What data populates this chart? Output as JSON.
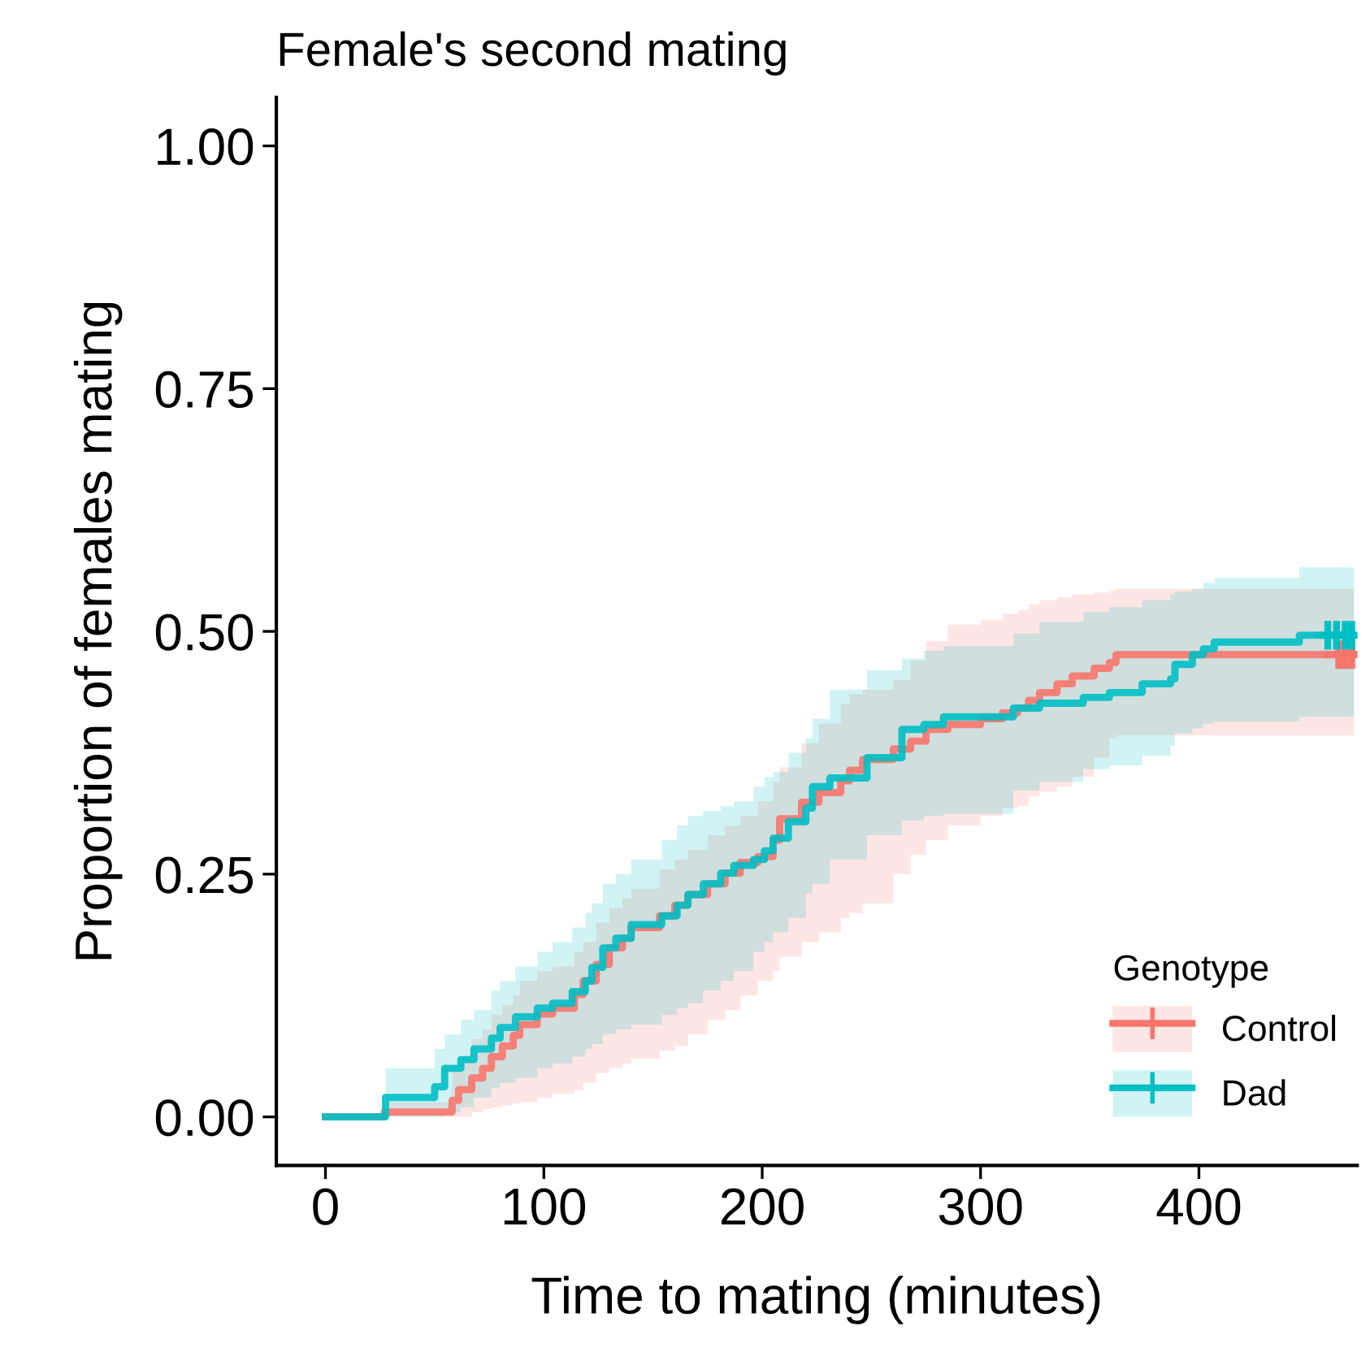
{
  "chart_data": {
    "type": "step",
    "title": "Female's second mating",
    "xlabel": "Time to mating (minutes)",
    "ylabel": "Proportion of females mating",
    "legend_title": "Genotype",
    "legend": "bottom right",
    "grid": false,
    "line_style": "solid",
    "xlim": [
      -22.5,
      472.5
    ],
    "xticks": [
      0,
      100,
      200,
      300,
      400
    ],
    "ylim": [
      -0.05,
      1.05
    ],
    "yticks": [
      {
        "value": 0,
        "label": "0.00"
      },
      {
        "value": 0.25,
        "label": "0.25"
      },
      {
        "value": 0.5,
        "label": "0.50"
      },
      {
        "value": 0.75,
        "label": "0.75"
      },
      {
        "value": 1,
        "label": "1.00"
      }
    ],
    "series": [
      {
        "name": "Control",
        "color": "#f8766d",
        "x": [
          0,
          27,
          58,
          61,
          67,
          72,
          76,
          81,
          86,
          89,
          97,
          104,
          114,
          118,
          124,
          130,
          136,
          140,
          153,
          160,
          166,
          175,
          183,
          190,
          198,
          205,
          208,
          218,
          226,
          236,
          240,
          246,
          260,
          268,
          275,
          285,
          300,
          310,
          317,
          322,
          327,
          335,
          342,
          352,
          359,
          362,
          471
        ],
        "values": [
          0,
          0.005,
          0.017,
          0.028,
          0.04,
          0.05,
          0.062,
          0.073,
          0.084,
          0.095,
          0.106,
          0.112,
          0.126,
          0.14,
          0.157,
          0.174,
          0.184,
          0.195,
          0.207,
          0.218,
          0.229,
          0.24,
          0.251,
          0.262,
          0.268,
          0.285,
          0.307,
          0.324,
          0.334,
          0.346,
          0.357,
          0.368,
          0.379,
          0.387,
          0.399,
          0.404,
          0.41,
          0.416,
          0.421,
          0.429,
          0.437,
          0.446,
          0.454,
          0.462,
          0.468,
          0.476,
          0.476
        ],
        "lower": [
          0,
          0,
          0,
          0,
          0.005,
          0.008,
          0.01,
          0.012,
          0.014,
          0.015,
          0.02,
          0.024,
          0.028,
          0.035,
          0.045,
          0.05,
          0.055,
          0.06,
          0.068,
          0.073,
          0.085,
          0.1,
          0.11,
          0.125,
          0.14,
          0.15,
          0.165,
          0.18,
          0.19,
          0.205,
          0.21,
          0.22,
          0.25,
          0.27,
          0.285,
          0.3,
          0.31,
          0.318,
          0.32,
          0.33,
          0.335,
          0.34,
          0.35,
          0.37,
          0.39,
          0.393,
          0.4
        ],
        "upper": [
          0,
          0.015,
          0.05,
          0.06,
          0.08,
          0.09,
          0.105,
          0.115,
          0.125,
          0.14,
          0.15,
          0.155,
          0.17,
          0.18,
          0.2,
          0.215,
          0.225,
          0.235,
          0.255,
          0.265,
          0.275,
          0.29,
          0.3,
          0.31,
          0.325,
          0.345,
          0.36,
          0.385,
          0.405,
          0.425,
          0.435,
          0.44,
          0.45,
          0.47,
          0.49,
          0.507,
          0.512,
          0.518,
          0.522,
          0.528,
          0.532,
          0.535,
          0.538,
          0.54,
          0.542,
          0.544,
          0.546
        ]
      },
      {
        "name": "Dad",
        "color": "#00bfc4",
        "x": [
          0,
          27.5,
          50,
          54.6,
          62,
          68,
          76,
          80,
          87,
          97,
          104,
          113,
          119,
          122,
          127,
          133,
          140,
          154,
          161,
          166,
          173,
          181,
          187,
          196,
          201,
          205,
          212,
          220,
          223,
          231,
          248,
          264,
          274,
          283,
          315,
          327,
          347,
          359,
          374,
          387,
          389,
          397,
          402,
          407,
          446,
          471
        ],
        "values": [
          0,
          0.02,
          0.031,
          0.05,
          0.059,
          0.07,
          0.081,
          0.092,
          0.103,
          0.112,
          0.117,
          0.129,
          0.14,
          0.154,
          0.174,
          0.184,
          0.198,
          0.207,
          0.218,
          0.229,
          0.24,
          0.251,
          0.259,
          0.265,
          0.274,
          0.287,
          0.304,
          0.318,
          0.34,
          0.349,
          0.37,
          0.399,
          0.404,
          0.412,
          0.421,
          0.426,
          0.432,
          0.437,
          0.446,
          0.451,
          0.466,
          0.476,
          0.482,
          0.489,
          0.496,
          0.496
        ],
        "lower": [
          0,
          0,
          0,
          0.005,
          0.01,
          0.02,
          0.03,
          0.035,
          0.04,
          0.05,
          0.055,
          0.062,
          0.07,
          0.075,
          0.085,
          0.09,
          0.095,
          0.105,
          0.112,
          0.117,
          0.13,
          0.14,
          0.15,
          0.17,
          0.18,
          0.19,
          0.205,
          0.23,
          0.24,
          0.265,
          0.29,
          0.305,
          0.31,
          0.312,
          0.336,
          0.345,
          0.358,
          0.362,
          0.372,
          0.382,
          0.395,
          0.4,
          0.405,
          0.407,
          0.412,
          0.412
        ],
        "upper": [
          0,
          0.05,
          0.07,
          0.085,
          0.1,
          0.11,
          0.13,
          0.14,
          0.155,
          0.17,
          0.18,
          0.195,
          0.21,
          0.22,
          0.24,
          0.25,
          0.265,
          0.285,
          0.3,
          0.31,
          0.315,
          0.32,
          0.325,
          0.34,
          0.35,
          0.355,
          0.375,
          0.39,
          0.41,
          0.44,
          0.46,
          0.472,
          0.48,
          0.485,
          0.498,
          0.51,
          0.52,
          0.525,
          0.532,
          0.538,
          0.541,
          0.544,
          0.55,
          0.555,
          0.566,
          0.566
        ]
      },
      {
        "type": "scatter",
        "color": "#f8766d",
        "marker": "cross",
        "x": [
          464,
          467,
          470
        ],
        "values": [
          0.476,
          0.476,
          0.476
        ]
      },
      {
        "type": "scatter",
        "color": "#00bfc4",
        "marker": "cross",
        "x": [
          459,
          463,
          467,
          470
        ],
        "values": [
          0.496,
          0.496,
          0.496,
          0.496
        ]
      }
    ]
  }
}
